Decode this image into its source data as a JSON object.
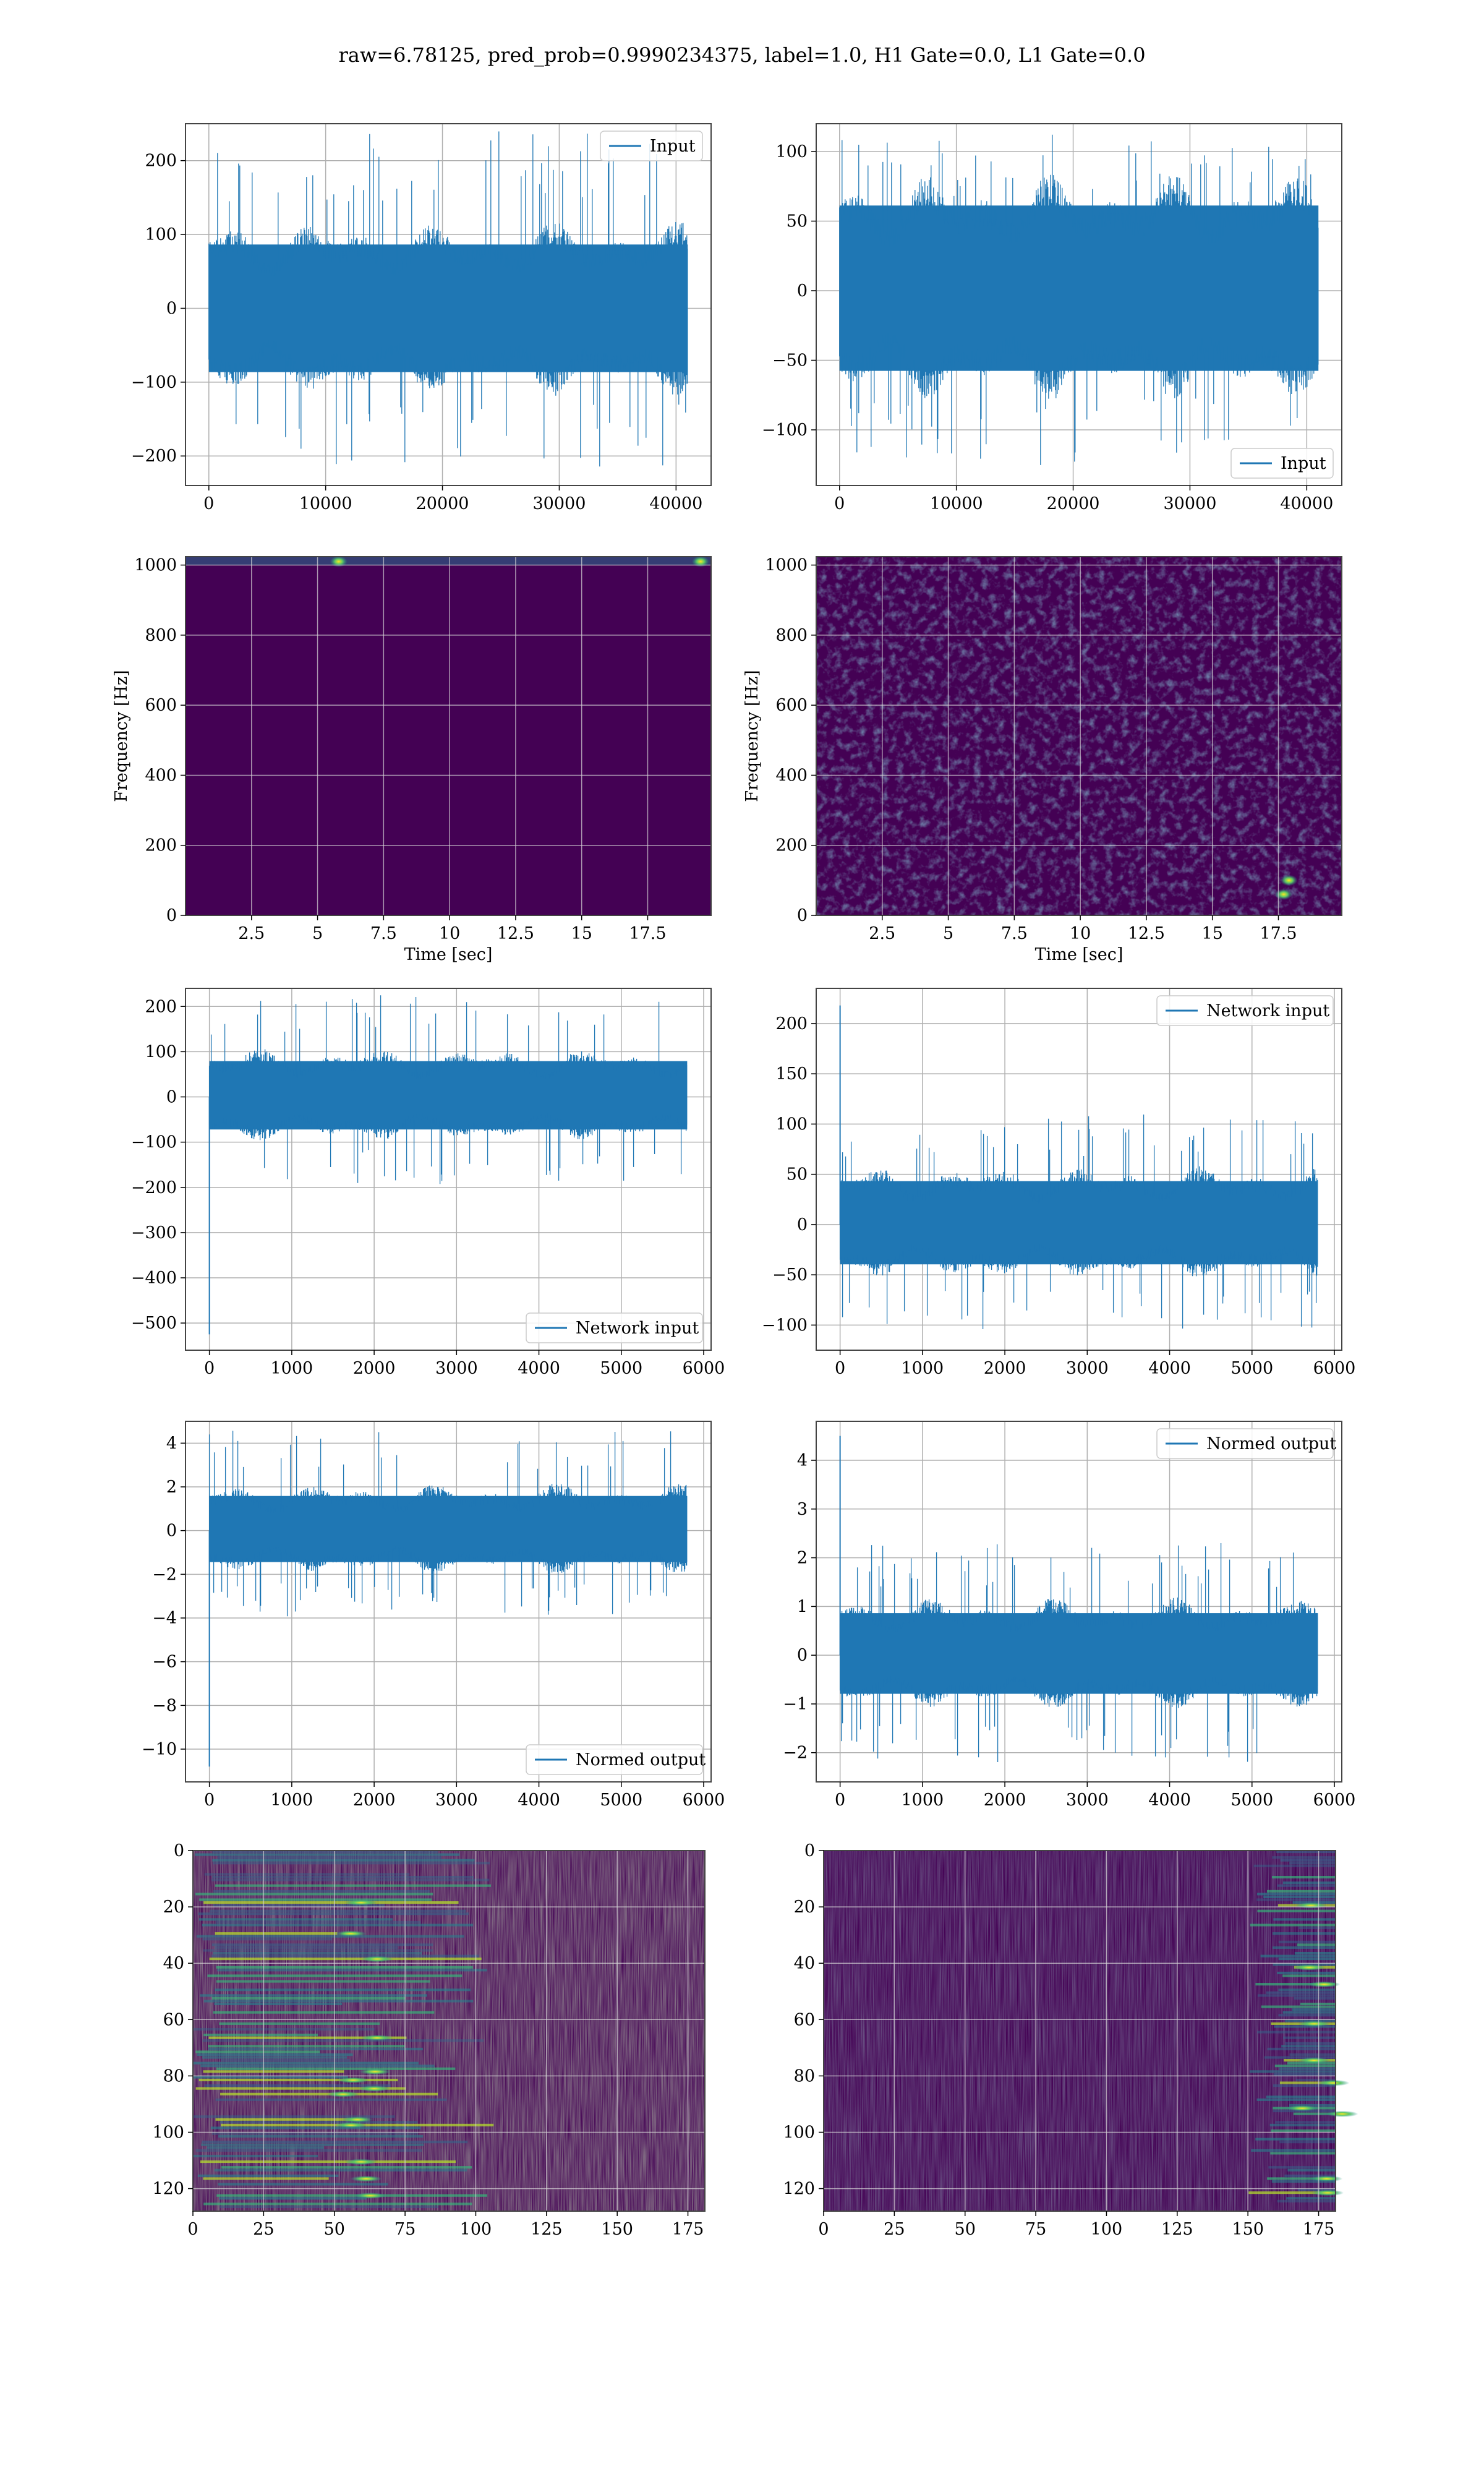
{
  "figure": {
    "title": "raw=6.78125, pred_prob=0.9990234375, label=1.0, H1 Gate=0.0, L1 Gate=0.0",
    "colors": {
      "line": "#1f77b4",
      "grid": "#b0b0b0",
      "spine": "#444444",
      "map_low": "#440154"
    }
  },
  "chart_data": [
    {
      "id": "h1-input",
      "type": "line",
      "xlim": [
        -2000,
        43000
      ],
      "ylim": [
        -240,
        250
      ],
      "xticks": [
        0,
        10000,
        20000,
        30000,
        40000
      ],
      "yticks": [
        -200,
        -100,
        0,
        100,
        200
      ],
      "legend": "top-right",
      "grid": true,
      "series": [
        {
          "name": "Input",
          "x_range": [
            0,
            41000
          ],
          "envelope": [
            -120,
            120
          ],
          "peak": [
            -215,
            240
          ],
          "color": "#1f77b4"
        }
      ]
    },
    {
      "id": "l1-input",
      "type": "line",
      "xlim": [
        -2000,
        43000
      ],
      "ylim": [
        -140,
        120
      ],
      "xticks": [
        0,
        10000,
        20000,
        30000,
        40000
      ],
      "yticks": [
        -100,
        -50,
        0,
        50,
        100
      ],
      "legend": "bottom-right",
      "grid": true,
      "series": [
        {
          "name": "Input",
          "x_range": [
            0,
            41000
          ],
          "envelope": [
            -80,
            85
          ],
          "peak": [
            -128,
            113
          ],
          "color": "#1f77b4"
        }
      ]
    },
    {
      "id": "h1-spectrogram",
      "type": "heatmap",
      "xlim": [
        0,
        19.9
      ],
      "ylim": [
        0,
        1024
      ],
      "xticks": [
        2.5,
        5.0,
        7.5,
        10.0,
        12.5,
        15.0,
        17.5
      ],
      "yticks": [
        0,
        200,
        400,
        600,
        800,
        1000
      ],
      "xlabel": "Time [sec]",
      "ylabel": "Frequency [Hz]",
      "grid": true,
      "hotspots": [
        {
          "x": 5.8,
          "y": 1010
        },
        {
          "x": 19.5,
          "y": 1010
        }
      ]
    },
    {
      "id": "l1-spectrogram",
      "type": "heatmap",
      "xlim": [
        0,
        19.9
      ],
      "ylim": [
        0,
        1024
      ],
      "xticks": [
        2.5,
        5.0,
        7.5,
        10.0,
        12.5,
        15.0,
        17.5
      ],
      "yticks": [
        0,
        200,
        400,
        600,
        800,
        1000
      ],
      "xlabel": "Time [sec]",
      "ylabel": "Frequency [Hz]",
      "grid": true,
      "hotspots": [
        {
          "x": 17.9,
          "y": 100
        },
        {
          "x": 17.7,
          "y": 60
        }
      ]
    },
    {
      "id": "h1-network-input",
      "type": "line",
      "xlim": [
        -290,
        6090
      ],
      "ylim": [
        -560,
        240
      ],
      "xticks": [
        0,
        1000,
        2000,
        3000,
        4000,
        5000,
        6000
      ],
      "yticks": [
        -500,
        -400,
        -300,
        -200,
        -100,
        0,
        100,
        200
      ],
      "legend": "bottom-right",
      "grid": true,
      "series": [
        {
          "name": "Network input",
          "x_range": [
            0,
            5800
          ],
          "envelope": [
            -100,
            110
          ],
          "peak": [
            -195,
            225
          ],
          "spike": {
            "x": 0,
            "y": -525
          },
          "color": "#1f77b4"
        }
      ]
    },
    {
      "id": "l1-network-input",
      "type": "line",
      "xlim": [
        -290,
        6090
      ],
      "ylim": [
        -125,
        235
      ],
      "xticks": [
        0,
        1000,
        2000,
        3000,
        4000,
        5000,
        6000
      ],
      "yticks": [
        -100,
        -50,
        0,
        50,
        100,
        150,
        200
      ],
      "legend": "top-right",
      "grid": true,
      "series": [
        {
          "name": "Network input",
          "x_range": [
            0,
            5800
          ],
          "envelope": [
            -55,
            60
          ],
          "peak": [
            -105,
            110
          ],
          "spike": {
            "x": 0,
            "y": 218
          },
          "color": "#1f77b4"
        }
      ]
    },
    {
      "id": "h1-normed-output",
      "type": "line",
      "xlim": [
        -290,
        6090
      ],
      "ylim": [
        -11.5,
        5.0
      ],
      "xticks": [
        0,
        1000,
        2000,
        3000,
        4000,
        5000,
        6000
      ],
      "yticks": [
        -10,
        -8,
        -6,
        -4,
        -2,
        0,
        2,
        4
      ],
      "legend": "bottom-right",
      "grid": true,
      "series": [
        {
          "name": "Normed output",
          "x_range": [
            0,
            5800
          ],
          "envelope": [
            -2.0,
            2.2
          ],
          "peak": [
            -4.0,
            4.6
          ],
          "spike": {
            "x": 0,
            "y": -10.8
          },
          "color": "#1f77b4"
        }
      ]
    },
    {
      "id": "l1-normed-output",
      "type": "line",
      "xlim": [
        -290,
        6090
      ],
      "ylim": [
        -2.6,
        4.8
      ],
      "xticks": [
        0,
        1000,
        2000,
        3000,
        4000,
        5000,
        6000
      ],
      "yticks": [
        -2,
        -1,
        0,
        1,
        2,
        3,
        4
      ],
      "legend": "top-right",
      "grid": true,
      "series": [
        {
          "name": "Normed output",
          "x_range": [
            0,
            5800
          ],
          "envelope": [
            -1.1,
            1.2
          ],
          "peak": [
            -2.2,
            2.3
          ],
          "spike": {
            "x": 0,
            "y": 4.5
          },
          "color": "#1f77b4"
        }
      ]
    },
    {
      "id": "h1-features",
      "type": "heatmap",
      "xlim": [
        0,
        181
      ],
      "ylim": [
        128,
        0
      ],
      "xticks": [
        0,
        25,
        50,
        75,
        100,
        125,
        150,
        175
      ],
      "yticks": [
        0,
        20,
        40,
        60,
        80,
        100,
        120
      ],
      "grid": true,
      "active_x_range": [
        0,
        100
      ],
      "peak_x": 60
    },
    {
      "id": "l1-features",
      "type": "heatmap",
      "xlim": [
        0,
        181
      ],
      "ylim": [
        128,
        0
      ],
      "xticks": [
        0,
        25,
        50,
        75,
        100,
        125,
        150,
        175
      ],
      "yticks": [
        0,
        20,
        40,
        60,
        80,
        100,
        120
      ],
      "grid": true,
      "active_x_range": [
        150,
        181
      ],
      "peak_x": 176
    }
  ]
}
